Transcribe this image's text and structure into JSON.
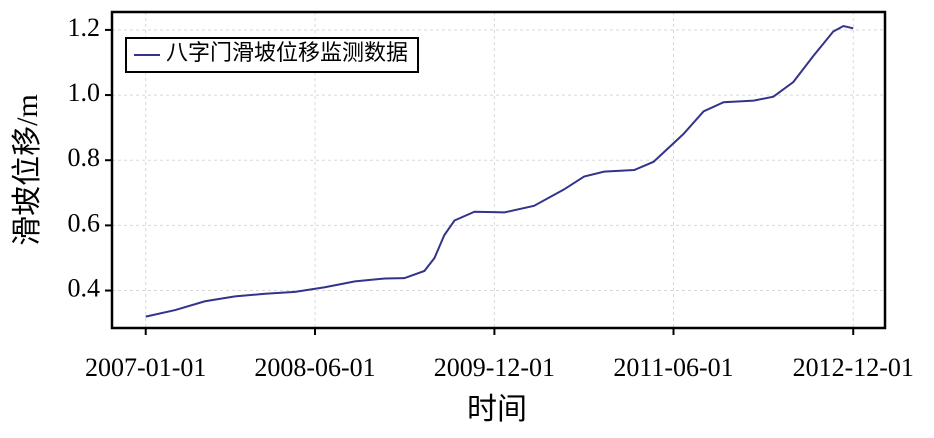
{
  "chart_data": {
    "type": "line",
    "xlabel": "时间",
    "ylabel": "滑坡位移/m",
    "x": [
      "2007-01-01",
      "2007-04-01",
      "2007-07-01",
      "2007-10-01",
      "2008-01-01",
      "2008-04-01",
      "2008-07-01",
      "2008-10-01",
      "2009-01-01",
      "2009-03-01",
      "2009-05-01",
      "2009-06-01",
      "2009-07-01",
      "2009-08-01",
      "2009-10-01",
      "2010-01-01",
      "2010-04-01",
      "2010-07-01",
      "2010-09-01",
      "2010-11-01",
      "2011-02-01",
      "2011-04-01",
      "2011-07-01",
      "2011-09-01",
      "2011-11-01",
      "2012-02-01",
      "2012-04-01",
      "2012-06-01",
      "2012-08-01",
      "2012-10-01",
      "2012-11-01",
      "2012-12-01"
    ],
    "series": [
      {
        "name": "八字门滑坡位移监测数据",
        "color": "#33338a",
        "values": [
          0.32,
          0.34,
          0.367,
          0.382,
          0.39,
          0.396,
          0.41,
          0.428,
          0.437,
          0.438,
          0.46,
          0.5,
          0.57,
          0.615,
          0.642,
          0.64,
          0.66,
          0.71,
          0.75,
          0.765,
          0.77,
          0.795,
          0.88,
          0.95,
          0.978,
          0.983,
          0.995,
          1.04,
          1.12,
          1.195,
          1.212,
          1.205
        ]
      }
    ],
    "xlim": [
      "2006-09-20",
      "2013-03-08"
    ],
    "xticks": [
      "2007-01-01",
      "2008-06-01",
      "2009-12-01",
      "2011-06-01",
      "2012-12-01"
    ],
    "ylim": [
      0.285,
      1.255
    ],
    "yticks": [
      {
        "value": 0.4,
        "label": "0.4"
      },
      {
        "value": 0.6,
        "label": "0.6"
      },
      {
        "value": 0.8,
        "label": "0.8"
      },
      {
        "value": 1.0,
        "label": "1.0"
      },
      {
        "value": 1.2,
        "label": "1.2"
      }
    ],
    "grid": true,
    "legend": "upper left"
  }
}
